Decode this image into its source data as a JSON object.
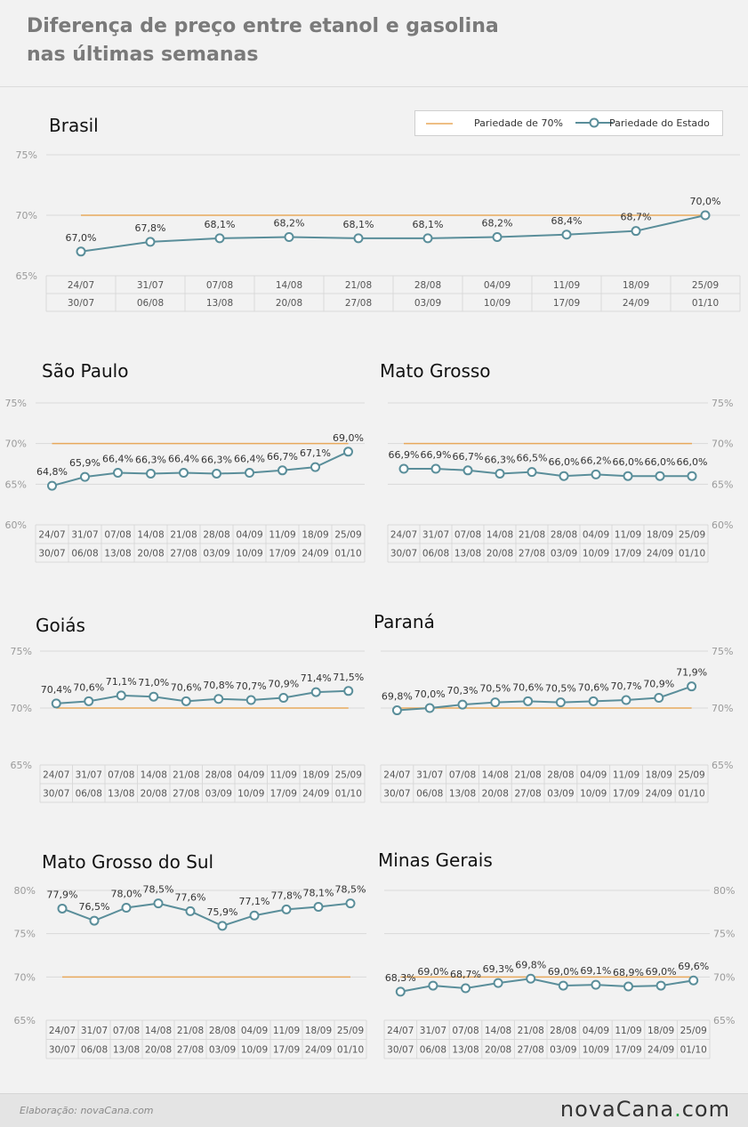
{
  "title": {
    "line1": "Diferença de preço entre etanol e gasolina",
    "line2": "nas últimas semanas"
  },
  "legend": {
    "item1": "Pariedade de 70%",
    "item2": "Pariedade do Estado"
  },
  "colors": {
    "parity": "#e8a95c",
    "series": "#5a8e9a",
    "marker_fill": "#ffffff",
    "grid": "#d9d9d9",
    "axis_text": "#9a9a9a"
  },
  "footer": {
    "credit": "Elaboração: novaCana.com",
    "logo_main": "novaCana",
    "logo_dot": ".",
    "logo_tld": "com"
  },
  "chart_data": [
    {
      "type": "line",
      "title": "Brasil",
      "categories_top": [
        "24/07",
        "31/07",
        "07/08",
        "14/08",
        "21/08",
        "28/08",
        "04/09",
        "11/09",
        "18/09",
        "25/09"
      ],
      "categories_bottom": [
        "30/07",
        "06/08",
        "13/08",
        "20/08",
        "27/08",
        "03/09",
        "10/09",
        "17/09",
        "24/09",
        "01/10"
      ],
      "values": [
        67.0,
        67.8,
        68.1,
        68.2,
        68.1,
        68.1,
        68.2,
        68.4,
        68.7,
        70.0
      ],
      "labels": [
        "67,0%",
        "67,8%",
        "68,1%",
        "68,2%",
        "68,1%",
        "68,1%",
        "68,2%",
        "68,4%",
        "68,7%",
        "70,0%"
      ],
      "parity": 70,
      "ylim": [
        65,
        75
      ],
      "yticks": [
        "65%",
        "70%",
        "75%"
      ],
      "ytick_values": [
        65,
        70,
        75
      ],
      "axis_side": "left"
    },
    {
      "type": "line",
      "title": "São Paulo",
      "categories_top": [
        "24/07",
        "31/07",
        "07/08",
        "14/08",
        "21/08",
        "28/08",
        "04/09",
        "11/09",
        "18/09",
        "25/09"
      ],
      "categories_bottom": [
        "30/07",
        "06/08",
        "13/08",
        "20/08",
        "27/08",
        "03/09",
        "10/09",
        "17/09",
        "24/09",
        "01/10"
      ],
      "values": [
        64.8,
        65.9,
        66.4,
        66.3,
        66.4,
        66.3,
        66.4,
        66.7,
        67.1,
        69.0
      ],
      "labels": [
        "64,8%",
        "65,9%",
        "66,4%",
        "66,3%",
        "66,4%",
        "66,3%",
        "66,4%",
        "66,7%",
        "67,1%",
        "69,0%"
      ],
      "parity": 70,
      "ylim": [
        60,
        75
      ],
      "yticks": [
        "60%",
        "65%",
        "70%",
        "75%"
      ],
      "ytick_values": [
        60,
        65,
        70,
        75
      ],
      "axis_side": "left"
    },
    {
      "type": "line",
      "title": "Mato Grosso",
      "categories_top": [
        "24/07",
        "31/07",
        "07/08",
        "14/08",
        "21/08",
        "28/08",
        "04/09",
        "11/09",
        "18/09",
        "25/09"
      ],
      "categories_bottom": [
        "30/07",
        "06/08",
        "13/08",
        "20/08",
        "27/08",
        "03/09",
        "10/09",
        "17/09",
        "24/09",
        "01/10"
      ],
      "values": [
        66.9,
        66.9,
        66.7,
        66.3,
        66.5,
        66.0,
        66.2,
        66.0,
        66.0,
        66.0
      ],
      "labels": [
        "66,9%",
        "66,9%",
        "66,7%",
        "66,3%",
        "66,5%",
        "66,0%",
        "66,2%",
        "66,0%",
        "66,0%",
        "66,0%"
      ],
      "parity": 70,
      "ylim": [
        60,
        75
      ],
      "yticks": [
        "60%",
        "65%",
        "70%",
        "75%"
      ],
      "ytick_values": [
        60,
        65,
        70,
        75
      ],
      "axis_side": "right"
    },
    {
      "type": "line",
      "title": "Goiás",
      "categories_top": [
        "24/07",
        "31/07",
        "07/08",
        "14/08",
        "21/08",
        "28/08",
        "04/09",
        "11/09",
        "18/09",
        "25/09"
      ],
      "categories_bottom": [
        "30/07",
        "06/08",
        "13/08",
        "20/08",
        "27/08",
        "03/09",
        "10/09",
        "17/09",
        "24/09",
        "01/10"
      ],
      "values": [
        70.4,
        70.6,
        71.1,
        71.0,
        70.6,
        70.8,
        70.7,
        70.9,
        71.4,
        71.5
      ],
      "labels": [
        "70,4%",
        "70,6%",
        "71,1%",
        "71,0%",
        "70,6%",
        "70,8%",
        "70,7%",
        "70,9%",
        "71,4%",
        "71,5%"
      ],
      "parity": 70,
      "ylim": [
        65,
        75
      ],
      "yticks": [
        "65%",
        "70%",
        "75%"
      ],
      "ytick_values": [
        65,
        70,
        75
      ],
      "axis_side": "left"
    },
    {
      "type": "line",
      "title": "Paraná",
      "categories_top": [
        "24/07",
        "31/07",
        "07/08",
        "14/08",
        "21/08",
        "28/08",
        "04/09",
        "11/09",
        "18/09",
        "25/09"
      ],
      "categories_bottom": [
        "30/07",
        "06/08",
        "13/08",
        "20/08",
        "27/08",
        "03/09",
        "10/09",
        "17/09",
        "24/09",
        "01/10"
      ],
      "values": [
        69.8,
        70.0,
        70.3,
        70.5,
        70.6,
        70.5,
        70.6,
        70.7,
        70.9,
        71.9
      ],
      "labels": [
        "69,8%",
        "70,0%",
        "70,3%",
        "70,5%",
        "70,6%",
        "70,5%",
        "70,6%",
        "70,7%",
        "70,9%",
        "71,9%"
      ],
      "parity": 70,
      "ylim": [
        65,
        75
      ],
      "yticks": [
        "65%",
        "70%",
        "75%"
      ],
      "ytick_values": [
        65,
        70,
        75
      ],
      "axis_side": "right"
    },
    {
      "type": "line",
      "title": "Mato Grosso do Sul",
      "categories_top": [
        "24/07",
        "31/07",
        "07/08",
        "14/08",
        "21/08",
        "28/08",
        "04/09",
        "11/09",
        "18/09",
        "25/09"
      ],
      "categories_bottom": [
        "30/07",
        "06/08",
        "13/08",
        "20/08",
        "27/08",
        "03/09",
        "10/09",
        "17/09",
        "24/09",
        "01/10"
      ],
      "values": [
        77.9,
        76.5,
        78.0,
        78.5,
        77.6,
        75.9,
        77.1,
        77.8,
        78.1,
        78.5
      ],
      "labels": [
        "77,9%",
        "76,5%",
        "78,0%",
        "78,5%",
        "77,6%",
        "75,9%",
        "77,1%",
        "77,8%",
        "78,1%",
        "78,5%"
      ],
      "parity": 70,
      "ylim": [
        65,
        80
      ],
      "yticks": [
        "65%",
        "70%",
        "75%",
        "80%"
      ],
      "ytick_values": [
        65,
        70,
        75,
        80
      ],
      "axis_side": "left"
    },
    {
      "type": "line",
      "title": "Minas Gerais",
      "categories_top": [
        "24/07",
        "31/07",
        "07/08",
        "14/08",
        "21/08",
        "28/08",
        "04/09",
        "11/09",
        "18/09",
        "25/09"
      ],
      "categories_bottom": [
        "30/07",
        "06/08",
        "13/08",
        "20/08",
        "27/08",
        "03/09",
        "10/09",
        "17/09",
        "24/09",
        "01/10"
      ],
      "values": [
        68.3,
        69.0,
        68.7,
        69.3,
        69.8,
        69.0,
        69.1,
        68.9,
        69.0,
        69.6
      ],
      "labels": [
        "68,3%",
        "69,0%",
        "68,7%",
        "69,3%",
        "69,8%",
        "69,0%",
        "69,1%",
        "68,9%",
        "69,0%",
        "69,6%"
      ],
      "parity": 70,
      "ylim": [
        65,
        80
      ],
      "yticks": [
        "65%",
        "70%",
        "75%",
        "80%"
      ],
      "ytick_values": [
        65,
        70,
        75,
        80
      ],
      "axis_side": "right"
    }
  ]
}
